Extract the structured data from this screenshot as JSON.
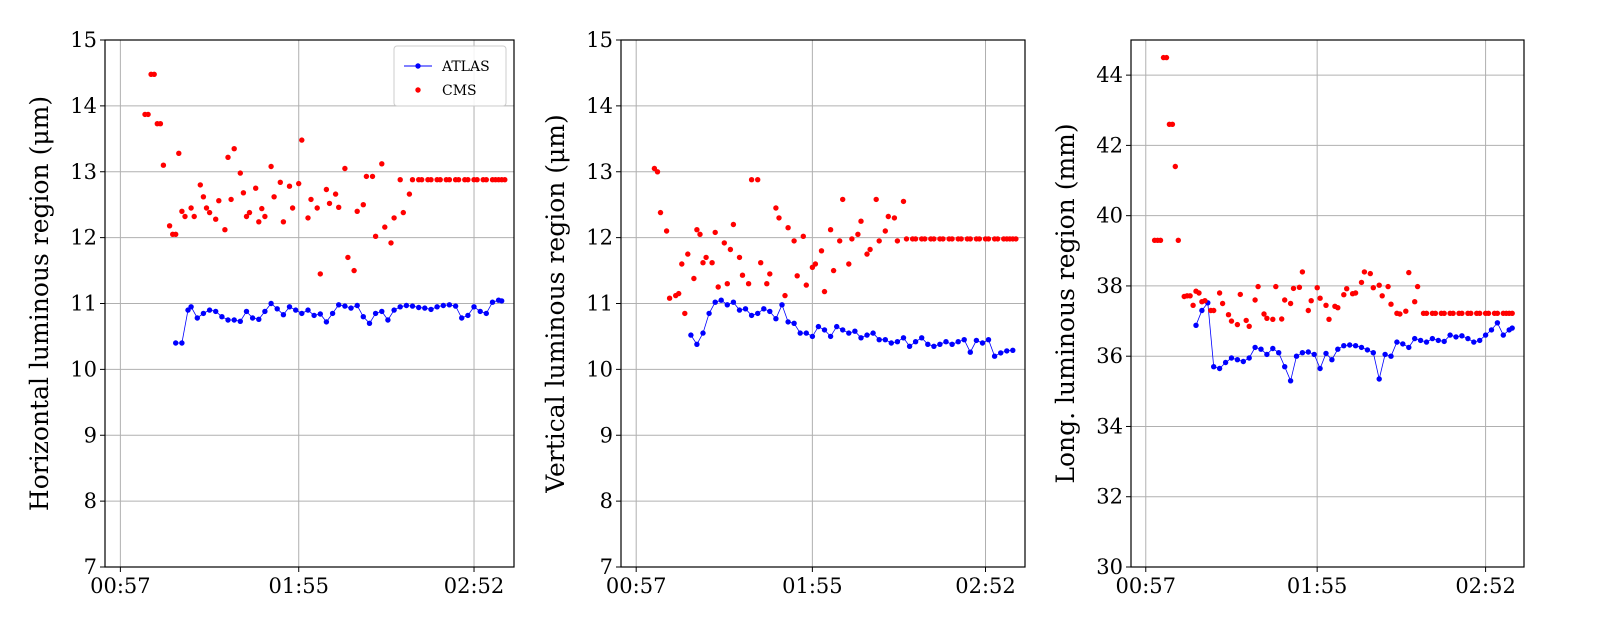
{
  "chart_data": [
    {
      "type": "scatter",
      "ylabel": "Horizontal luminous region (μm)",
      "ylim": [
        7,
        15
      ],
      "yticks": [
        7,
        8,
        9,
        10,
        11,
        12,
        13,
        14,
        15
      ],
      "xlim": [
        "00:52",
        "03:05"
      ],
      "xticks": [
        "00:57",
        "01:55",
        "02:52"
      ],
      "grid": true,
      "legend": {
        "position": "top-right",
        "entries": [
          "ATLAS",
          "CMS"
        ]
      },
      "series": [
        {
          "name": "ATLAS",
          "color": "#0000ff",
          "style": "line-marker",
          "x": [
            "01:15",
            "01:17",
            "01:19",
            "01:20",
            "01:22",
            "01:24",
            "01:26",
            "01:28",
            "01:30",
            "01:32",
            "01:34",
            "01:36",
            "01:38",
            "01:40",
            "01:42",
            "01:44",
            "01:46",
            "01:48",
            "01:50",
            "01:52",
            "01:54",
            "01:56",
            "01:58",
            "02:00",
            "02:02",
            "02:04",
            "02:06",
            "02:08",
            "02:10",
            "02:12",
            "02:14",
            "02:16",
            "02:18",
            "02:20",
            "02:22",
            "02:24",
            "02:26",
            "02:28",
            "02:30",
            "02:32",
            "02:34",
            "02:36",
            "02:38",
            "02:40",
            "02:42",
            "02:44",
            "02:46",
            "02:48",
            "02:50",
            "02:52",
            "02:54",
            "02:56",
            "02:58",
            "03:00",
            "03:01"
          ],
          "values": [
            10.4,
            10.4,
            10.9,
            10.95,
            10.78,
            10.85,
            10.9,
            10.88,
            10.8,
            10.75,
            10.75,
            10.73,
            10.88,
            10.78,
            10.76,
            10.88,
            11.0,
            10.92,
            10.83,
            10.95,
            10.9,
            10.85,
            10.9,
            10.82,
            10.84,
            10.72,
            10.85,
            10.98,
            10.96,
            10.93,
            10.97,
            10.8,
            10.7,
            10.85,
            10.88,
            10.75,
            10.9,
            10.95,
            10.97,
            10.96,
            10.94,
            10.93,
            10.91,
            10.95,
            10.97,
            10.98,
            10.96,
            10.78,
            10.82,
            10.95,
            10.88,
            10.85,
            11.02,
            11.05,
            11.04
          ]
        },
        {
          "name": "CMS",
          "color": "#ff0000",
          "style": "marker",
          "x": [
            "01:05",
            "01:06",
            "01:07",
            "01:08",
            "01:09",
            "01:10",
            "01:11",
            "01:13",
            "01:14",
            "01:15",
            "01:16",
            "01:17",
            "01:18",
            "01:20",
            "01:21",
            "01:23",
            "01:24",
            "01:25",
            "01:26",
            "01:28",
            "01:29",
            "01:31",
            "01:32",
            "01:33",
            "01:34",
            "01:36",
            "01:37",
            "01:38",
            "01:39",
            "01:41",
            "01:42",
            "01:43",
            "01:44",
            "01:46",
            "01:47",
            "01:49",
            "01:50",
            "01:52",
            "01:53",
            "01:55",
            "01:56",
            "01:58",
            "01:59",
            "02:01",
            "02:02",
            "02:04",
            "02:05",
            "02:07",
            "02:08",
            "02:10",
            "02:11",
            "02:13",
            "02:14",
            "02:16",
            "02:17",
            "02:19",
            "02:20",
            "02:22",
            "02:23",
            "02:25",
            "02:26",
            "02:28",
            "02:29",
            "02:31",
            "02:32",
            "02:34",
            "02:35",
            "02:37",
            "02:38",
            "02:40",
            "02:41",
            "02:43",
            "02:44",
            "02:46",
            "02:47",
            "02:49",
            "02:50",
            "02:52",
            "02:53",
            "02:55",
            "02:56",
            "02:58",
            "02:59",
            "03:00",
            "03:01",
            "03:02"
          ],
          "values": [
            13.87,
            13.87,
            14.48,
            14.48,
            13.73,
            13.73,
            13.1,
            12.18,
            12.05,
            12.05,
            13.28,
            12.4,
            12.32,
            12.45,
            12.32,
            12.8,
            12.62,
            12.45,
            12.38,
            12.28,
            12.56,
            12.12,
            13.22,
            12.58,
            13.35,
            12.98,
            12.68,
            12.32,
            12.38,
            12.75,
            12.24,
            12.44,
            12.32,
            13.08,
            12.62,
            12.84,
            12.24,
            12.78,
            12.45,
            12.82,
            13.48,
            12.3,
            12.58,
            12.45,
            11.45,
            12.73,
            12.52,
            12.66,
            12.46,
            13.05,
            11.7,
            11.5,
            12.4,
            12.5,
            12.93,
            12.93,
            12.02,
            13.12,
            12.16,
            11.92,
            12.3,
            12.88,
            12.38,
            12.66,
            12.88,
            12.88,
            12.88,
            12.88,
            12.88,
            12.88,
            12.88,
            12.88,
            12.88,
            12.88,
            12.88,
            12.88,
            12.88,
            12.88,
            12.88,
            12.88,
            12.88,
            12.88,
            12.88,
            12.88,
            12.88,
            12.88
          ]
        }
      ]
    },
    {
      "type": "scatter",
      "ylabel": "Vertical luminous region (μm)",
      "ylim": [
        7,
        15
      ],
      "yticks": [
        7,
        8,
        9,
        10,
        11,
        12,
        13,
        14,
        15
      ],
      "xlim": [
        "00:52",
        "03:05"
      ],
      "xticks": [
        "00:57",
        "01:55",
        "02:52"
      ],
      "grid": true,
      "series": [
        {
          "name": "ATLAS",
          "color": "#0000ff",
          "style": "line-marker",
          "x": [
            "01:15",
            "01:17",
            "01:19",
            "01:21",
            "01:23",
            "01:25",
            "01:27",
            "01:29",
            "01:31",
            "01:33",
            "01:35",
            "01:37",
            "01:39",
            "01:41",
            "01:43",
            "01:45",
            "01:47",
            "01:49",
            "01:51",
            "01:53",
            "01:55",
            "01:57",
            "01:59",
            "02:01",
            "02:03",
            "02:05",
            "02:07",
            "02:09",
            "02:11",
            "02:13",
            "02:15",
            "02:17",
            "02:19",
            "02:21",
            "02:23",
            "02:25",
            "02:27",
            "02:29",
            "02:31",
            "02:33",
            "02:35",
            "02:37",
            "02:39",
            "02:41",
            "02:43",
            "02:45",
            "02:47",
            "02:49",
            "02:51",
            "02:53",
            "02:55",
            "02:57",
            "02:59",
            "03:01"
          ],
          "values": [
            10.52,
            10.38,
            10.55,
            10.85,
            11.02,
            11.05,
            10.98,
            11.02,
            10.9,
            10.92,
            10.82,
            10.85,
            10.92,
            10.88,
            10.77,
            10.98,
            10.72,
            10.7,
            10.55,
            10.55,
            10.5,
            10.65,
            10.6,
            10.5,
            10.65,
            10.6,
            10.55,
            10.58,
            10.48,
            10.52,
            10.55,
            10.45,
            10.45,
            10.4,
            10.42,
            10.48,
            10.35,
            10.42,
            10.48,
            10.38,
            10.35,
            10.38,
            10.42,
            10.38,
            10.42,
            10.45,
            10.26,
            10.44,
            10.4,
            10.45,
            10.2,
            10.25,
            10.28,
            10.29
          ]
        },
        {
          "name": "CMS",
          "color": "#ff0000",
          "style": "marker",
          "x": [
            "01:03",
            "01:04",
            "01:05",
            "01:07",
            "01:08",
            "01:10",
            "01:11",
            "01:12",
            "01:13",
            "01:14",
            "01:16",
            "01:17",
            "01:18",
            "01:19",
            "01:20",
            "01:22",
            "01:23",
            "01:24",
            "01:26",
            "01:27",
            "01:28",
            "01:29",
            "01:31",
            "01:32",
            "01:34",
            "01:35",
            "01:37",
            "01:38",
            "01:40",
            "01:41",
            "01:43",
            "01:44",
            "01:46",
            "01:47",
            "01:49",
            "01:50",
            "01:52",
            "01:53",
            "01:55",
            "01:56",
            "01:58",
            "01:59",
            "02:01",
            "02:02",
            "02:04",
            "02:05",
            "02:07",
            "02:08",
            "02:10",
            "02:11",
            "02:13",
            "02:14",
            "02:16",
            "02:17",
            "02:19",
            "02:20",
            "02:22",
            "02:23",
            "02:25",
            "02:26",
            "02:28",
            "02:29",
            "02:31",
            "02:32",
            "02:34",
            "02:35",
            "02:37",
            "02:38",
            "02:40",
            "02:41",
            "02:43",
            "02:44",
            "02:46",
            "02:47",
            "02:49",
            "02:50",
            "02:52",
            "02:53",
            "02:55",
            "02:56",
            "02:58",
            "02:59",
            "03:00",
            "03:01",
            "03:02"
          ],
          "values": [
            13.05,
            13.0,
            12.38,
            12.1,
            11.08,
            11.12,
            11.15,
            11.6,
            10.85,
            11.75,
            11.38,
            12.12,
            12.05,
            11.62,
            11.7,
            11.62,
            12.08,
            11.25,
            11.92,
            11.3,
            11.82,
            12.2,
            11.7,
            11.43,
            11.3,
            12.88,
            12.88,
            11.62,
            11.3,
            11.45,
            12.45,
            12.3,
            11.12,
            12.15,
            11.95,
            11.42,
            12.02,
            11.28,
            11.55,
            11.6,
            11.8,
            11.18,
            12.12,
            11.5,
            11.95,
            12.58,
            11.6,
            11.98,
            12.05,
            12.25,
            11.75,
            11.82,
            12.58,
            11.95,
            12.1,
            12.32,
            12.3,
            11.95,
            12.55,
            11.98,
            11.98,
            11.98,
            11.98,
            11.98,
            11.98,
            11.98,
            11.98,
            11.98,
            11.98,
            11.98,
            11.98,
            11.98,
            11.98,
            11.98,
            11.98,
            11.98,
            11.98,
            11.98,
            11.98,
            11.98,
            11.98,
            11.98,
            11.98,
            11.98,
            11.98
          ]
        }
      ]
    },
    {
      "type": "scatter",
      "ylabel": "Long. luminous region (mm)",
      "ylim": [
        30,
        45
      ],
      "yticks": [
        30,
        32,
        34,
        36,
        38,
        40,
        42,
        44
      ],
      "xlim": [
        "00:52",
        "03:05"
      ],
      "xticks": [
        "00:57",
        "01:55",
        "02:52"
      ],
      "grid": true,
      "series": [
        {
          "name": "ATLAS",
          "color": "#0000ff",
          "style": "line-marker",
          "x": [
            "01:14",
            "01:16",
            "01:18",
            "01:20",
            "01:22",
            "01:24",
            "01:26",
            "01:28",
            "01:30",
            "01:32",
            "01:34",
            "01:36",
            "01:38",
            "01:40",
            "01:42",
            "01:44",
            "01:46",
            "01:48",
            "01:50",
            "01:52",
            "01:54",
            "01:56",
            "01:58",
            "02:00",
            "02:02",
            "02:04",
            "02:06",
            "02:08",
            "02:10",
            "02:12",
            "02:14",
            "02:16",
            "02:18",
            "02:20",
            "02:22",
            "02:24",
            "02:26",
            "02:28",
            "02:30",
            "02:32",
            "02:34",
            "02:36",
            "02:38",
            "02:40",
            "02:42",
            "02:44",
            "02:46",
            "02:48",
            "02:50",
            "02:52",
            "02:54",
            "02:56",
            "02:58",
            "03:00",
            "03:01"
          ],
          "values": [
            36.88,
            37.3,
            37.52,
            35.7,
            35.65,
            35.82,
            35.95,
            35.9,
            35.85,
            35.95,
            36.25,
            36.2,
            36.05,
            36.22,
            36.1,
            35.7,
            35.3,
            36.0,
            36.1,
            36.12,
            36.05,
            35.65,
            36.08,
            35.9,
            36.2,
            36.3,
            36.32,
            36.3,
            36.25,
            36.18,
            36.1,
            35.35,
            36.05,
            36.0,
            36.4,
            36.35,
            36.25,
            36.5,
            36.45,
            36.4,
            36.5,
            36.45,
            36.42,
            36.6,
            36.55,
            36.58,
            36.5,
            36.4,
            36.45,
            36.6,
            36.75,
            36.95,
            36.6,
            36.75,
            36.8
          ]
        },
        {
          "name": "CMS",
          "color": "#ff0000",
          "style": "marker",
          "x": [
            "01:00",
            "01:01",
            "01:02",
            "01:03",
            "01:04",
            "01:05",
            "01:06",
            "01:07",
            "01:08",
            "01:10",
            "01:11",
            "01:12",
            "01:13",
            "01:14",
            "01:15",
            "01:16",
            "01:17",
            "01:19",
            "01:20",
            "01:22",
            "01:23",
            "01:25",
            "01:26",
            "01:28",
            "01:29",
            "01:31",
            "01:32",
            "01:34",
            "01:35",
            "01:37",
            "01:38",
            "01:40",
            "01:41",
            "01:43",
            "01:44",
            "01:46",
            "01:47",
            "01:49",
            "01:50",
            "01:52",
            "01:53",
            "01:55",
            "01:56",
            "01:58",
            "01:59",
            "02:01",
            "02:02",
            "02:04",
            "02:05",
            "02:07",
            "02:08",
            "02:10",
            "02:11",
            "02:13",
            "02:14",
            "02:16",
            "02:17",
            "02:19",
            "02:20",
            "02:22",
            "02:23",
            "02:25",
            "02:26",
            "02:28",
            "02:29",
            "02:31",
            "02:32",
            "02:34",
            "02:35",
            "02:37",
            "02:38",
            "02:40",
            "02:41",
            "02:43",
            "02:44",
            "02:46",
            "02:47",
            "02:49",
            "02:50",
            "02:52",
            "02:53",
            "02:55",
            "02:56",
            "02:58",
            "02:59",
            "03:00",
            "03:01"
          ],
          "values": [
            39.3,
            39.3,
            39.3,
            44.5,
            44.5,
            42.6,
            42.6,
            41.4,
            39.3,
            37.7,
            37.72,
            37.72,
            37.45,
            37.85,
            37.8,
            37.55,
            37.58,
            37.3,
            37.3,
            37.8,
            37.5,
            37.18,
            37.0,
            36.9,
            37.76,
            37.02,
            36.85,
            37.6,
            37.98,
            37.2,
            37.08,
            37.05,
            37.98,
            37.06,
            37.6,
            37.5,
            37.93,
            37.96,
            38.4,
            37.3,
            37.58,
            37.95,
            37.65,
            37.45,
            37.05,
            37.42,
            37.38,
            37.75,
            37.92,
            37.78,
            37.8,
            38.1,
            38.4,
            38.35,
            37.95,
            38.02,
            37.72,
            37.98,
            37.48,
            37.22,
            37.2,
            37.28,
            38.38,
            37.55,
            37.98,
            37.22,
            37.22,
            37.22,
            37.22,
            37.22,
            37.22,
            37.22,
            37.22,
            37.22,
            37.22,
            37.22,
            37.22,
            37.22,
            37.22,
            37.22,
            37.22,
            37.22,
            37.22,
            37.22,
            37.22,
            37.22,
            37.22
          ]
        }
      ]
    }
  ]
}
